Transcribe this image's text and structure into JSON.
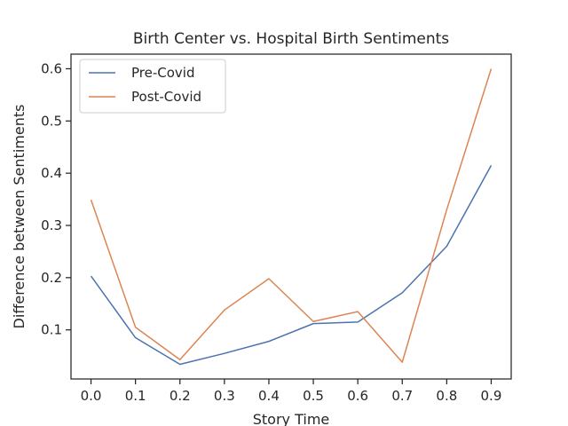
{
  "chart_data": {
    "type": "line",
    "title": "Birth Center vs. Hospital Birth Sentiments",
    "xlabel": "Story Time",
    "ylabel": "Difference between Sentiments",
    "x": [
      0.0,
      0.1,
      0.2,
      0.3,
      0.4,
      0.5,
      0.6,
      0.7,
      0.8,
      0.9
    ],
    "x_tick_labels": [
      "0.0",
      "0.1",
      "0.2",
      "0.3",
      "0.4",
      "0.5",
      "0.6",
      "0.7",
      "0.8",
      "0.9"
    ],
    "y_ticks": [
      0.1,
      0.2,
      0.3,
      0.4,
      0.5,
      0.6
    ],
    "y_tick_labels": [
      "0.1",
      "0.2",
      "0.3",
      "0.4",
      "0.5",
      "0.6"
    ],
    "xlim": [
      -0.045,
      0.945
    ],
    "ylim": [
      0.006,
      0.628
    ],
    "legend_position": "upper-left",
    "grid": false,
    "series": [
      {
        "name": "Pre-Covid",
        "color": "#4c72b0",
        "values": [
          0.203,
          0.085,
          0.034,
          0.055,
          0.078,
          0.112,
          0.115,
          0.171,
          0.26,
          0.415
        ]
      },
      {
        "name": "Post-Covid",
        "color": "#dd8452",
        "values": [
          0.349,
          0.105,
          0.043,
          0.138,
          0.198,
          0.116,
          0.135,
          0.038,
          0.33,
          0.6
        ]
      }
    ]
  }
}
